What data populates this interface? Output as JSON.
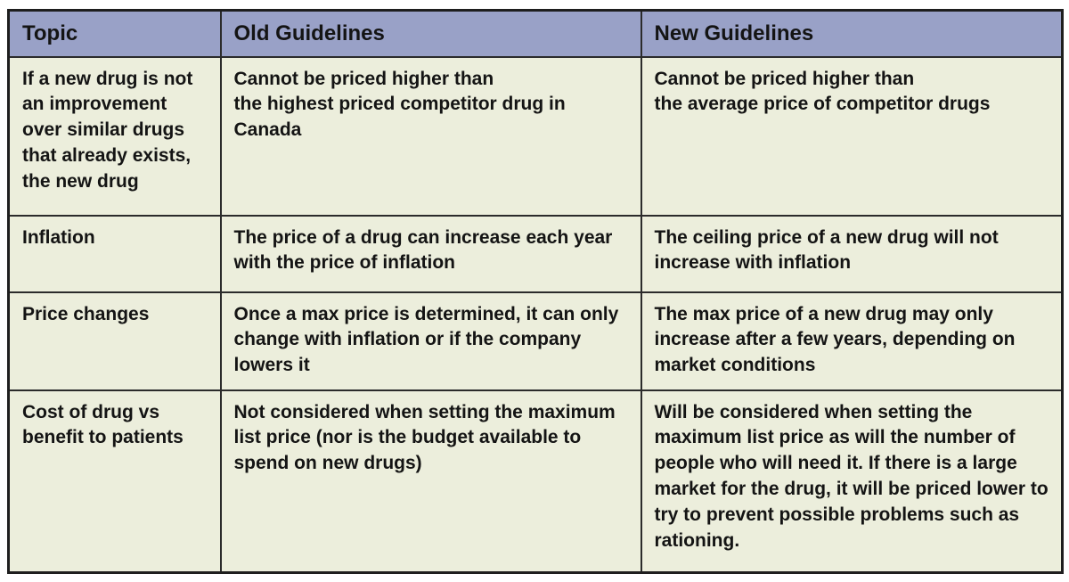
{
  "colors": {
    "header_bg": "#99a1c7",
    "cell_bg": "#eceedc",
    "border_outer": "#1e1e1e",
    "border_inner": "#2b2b2b",
    "text": "#141414"
  },
  "table": {
    "columns": {
      "topic": "Topic",
      "old": "Old Guidelines",
      "new": "New Guidelines"
    },
    "rows": [
      {
        "topic": "If a new drug is not an improvement over similar drugs that already exists, the new drug",
        "old": "Cannot be priced higher than\nthe highest priced competitor drug in Canada",
        "new": "Cannot be priced higher than\nthe average price of competitor drugs"
      },
      {
        "topic": "Inflation",
        "old": "The price of a drug can increase each year with the price of inflation",
        "new": "The ceiling price of a new drug will not increase with inflation"
      },
      {
        "topic": "Price changes",
        "old": "Once a max price is determined, it can only change with inflation or if the company lowers it",
        "new": "The max price of a new drug may only increase after a few years, depending on market conditions"
      },
      {
        "topic": "Cost of drug vs benefit to patients",
        "old": "Not considered when setting the maximum list price (nor is the budget available to spend on new drugs)",
        "new": "Will be considered when setting the maximum list price as will the number of people who will need it. If there is a large market for the drug, it will be priced lower to try to prevent possible problems such as rationing."
      }
    ]
  }
}
